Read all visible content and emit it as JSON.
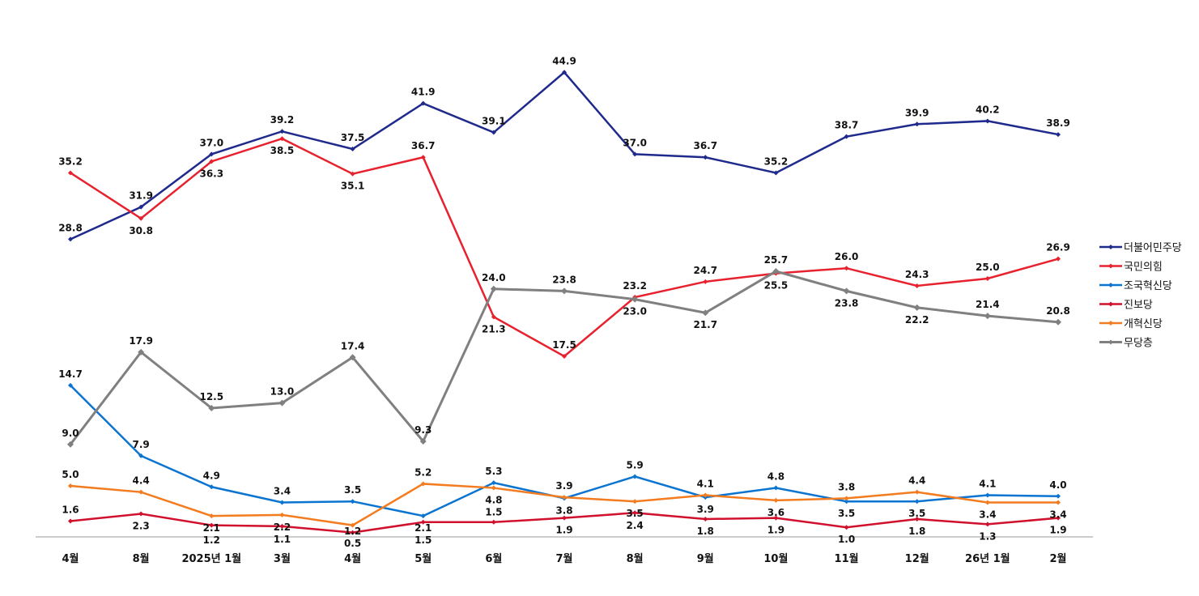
{
  "chart_data": {
    "type": "line",
    "title": "",
    "xlabel": "",
    "ylabel": "",
    "ylim": [
      0,
      47
    ],
    "grid": false,
    "legend_position": "right",
    "categories": [
      "4월",
      "8월",
      "2025년 1월",
      "3월",
      "4월",
      "5월",
      "6월",
      "7월",
      "8월",
      "9월",
      "10월",
      "11월",
      "12월",
      "26년 1월",
      "2월"
    ],
    "series": [
      {
        "name": "더불어민주당",
        "color": "#1F2A8C",
        "values": [
          28.8,
          31.9,
          37.0,
          39.2,
          37.5,
          41.9,
          39.1,
          44.9,
          37.0,
          36.7,
          35.2,
          38.7,
          39.9,
          40.2,
          38.9
        ]
      },
      {
        "name": "국민의힘",
        "color": "#E8212E",
        "values": [
          35.2,
          30.8,
          36.3,
          38.5,
          35.1,
          36.7,
          21.3,
          17.5,
          23.2,
          24.7,
          25.5,
          26.0,
          24.3,
          25.0,
          26.9
        ]
      },
      {
        "name": "조국혁신당",
        "color": "#0A74D0",
        "values": [
          14.7,
          7.9,
          4.9,
          3.4,
          3.5,
          2.1,
          5.3,
          3.8,
          5.9,
          3.9,
          4.8,
          3.5,
          3.5,
          4.1,
          4.0
        ]
      },
      {
        "name": "진보당",
        "color": "#D0102C",
        "values": [
          1.6,
          2.3,
          1.2,
          1.1,
          0.5,
          1.5,
          1.5,
          1.9,
          2.4,
          1.8,
          1.9,
          1.0,
          1.8,
          1.3,
          1.9
        ]
      },
      {
        "name": "개혁신당",
        "color": "#F47C20",
        "values": [
          5.0,
          4.4,
          2.1,
          2.2,
          1.2,
          5.2,
          4.8,
          3.9,
          3.5,
          4.1,
          3.6,
          3.8,
          4.4,
          3.4,
          3.4
        ]
      },
      {
        "name": "무당층",
        "color": "#808080",
        "values": [
          9.0,
          17.9,
          12.5,
          13.0,
          17.4,
          9.3,
          24.0,
          23.8,
          23.0,
          21.7,
          25.7,
          23.8,
          22.2,
          21.4,
          20.8
        ]
      }
    ]
  }
}
